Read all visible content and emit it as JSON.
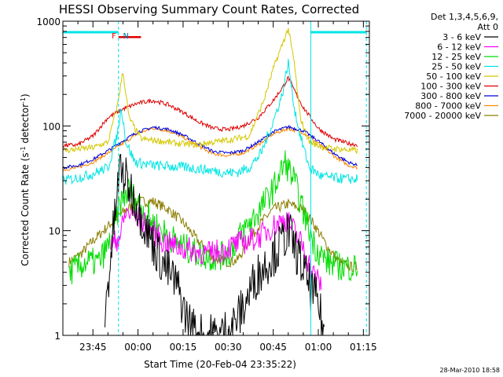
{
  "chart_data": {
    "type": "line",
    "title": "HESSI Observing Summary Count Rates, Corrected",
    "xlabel": "Start Time (20-Feb-04 23:35:22)",
    "ylabel_main": "Corrected Count Rate (s",
    "ylabel_sup1": "-1",
    "ylabel_mid": " detector",
    "ylabel_sup2": "-1",
    "ylabel_end": ")",
    "yscale": "log",
    "ylim": [
      1,
      1000
    ],
    "xlim_minutes": [
      0,
      102
    ],
    "x_tick_labels": [
      "23:45",
      "00:00",
      "00:15",
      "00:30",
      "00:45",
      "01:00",
      "01:15"
    ],
    "x_tick_minutes": [
      10,
      25,
      40,
      55,
      70,
      85,
      100
    ],
    "y_tick_labels": [
      "1",
      "10",
      "100",
      "1000"
    ],
    "y_tick_values": [
      1,
      10,
      100,
      1000
    ],
    "legend_header": [
      "Det 1,3,4,5,6,9,",
      "Att 0"
    ],
    "legend_placement": "top-right outside",
    "footer": "28-Mar-2010 18:58",
    "flags": {
      "night_bars": [
        [
          0,
          18.5
        ],
        [
          82.5,
          101
        ]
      ],
      "saa_bar": [
        18.5,
        26
      ],
      "boundary_lines": [
        0,
        18.5,
        82.5,
        101
      ],
      "labels": [
        {
          "text": "F",
          "at": 17
        },
        {
          "text": "N",
          "at": 21
        }
      ],
      "night_color": "#00e5e5",
      "saa_color": "#e00000"
    },
    "series": [
      {
        "name": "3 - 6 keV",
        "color": "#000000",
        "start": 14,
        "end": 87,
        "points": [
          [
            14,
            1.5
          ],
          [
            16,
            6
          ],
          [
            19,
            40
          ],
          [
            24,
            20
          ],
          [
            28,
            10
          ],
          [
            33,
            5
          ],
          [
            38,
            3
          ],
          [
            41,
            1.5
          ],
          [
            45,
            1
          ],
          [
            52,
            1
          ],
          [
            56,
            1.2
          ],
          [
            60,
            1.8
          ],
          [
            64,
            3.5
          ],
          [
            68,
            5
          ],
          [
            72,
            7
          ],
          [
            75,
            10
          ],
          [
            78,
            6
          ],
          [
            82,
            3
          ],
          [
            85,
            2
          ],
          [
            87,
            1
          ]
        ]
      },
      {
        "name": "6 - 12 keV",
        "color": "#ff00ff",
        "start": 16,
        "end": 86,
        "points": [
          [
            16,
            7
          ],
          [
            19,
            9
          ],
          [
            21,
            15
          ],
          [
            24,
            14
          ],
          [
            28,
            11
          ],
          [
            33,
            8
          ],
          [
            38,
            7
          ],
          [
            43,
            6.5
          ],
          [
            48,
            6
          ],
          [
            53,
            6.5
          ],
          [
            58,
            7.5
          ],
          [
            62,
            8
          ],
          [
            66,
            9
          ],
          [
            70,
            11
          ],
          [
            74,
            13
          ],
          [
            77,
            10
          ],
          [
            80,
            7
          ],
          [
            83,
            4
          ],
          [
            86,
            3
          ]
        ]
      },
      {
        "name": "12 - 25 keV",
        "color": "#00dd00",
        "start": 2,
        "end": 98,
        "points": [
          [
            2,
            4
          ],
          [
            8,
            5
          ],
          [
            12,
            5
          ],
          [
            16,
            8
          ],
          [
            19,
            18
          ],
          [
            22,
            25
          ],
          [
            25,
            18
          ],
          [
            30,
            12
          ],
          [
            35,
            9
          ],
          [
            40,
            7
          ],
          [
            45,
            6
          ],
          [
            50,
            5.5
          ],
          [
            55,
            6
          ],
          [
            60,
            10
          ],
          [
            65,
            15
          ],
          [
            70,
            25
          ],
          [
            74,
            45
          ],
          [
            77,
            30
          ],
          [
            80,
            15
          ],
          [
            84,
            7
          ],
          [
            88,
            5
          ],
          [
            93,
            4.5
          ],
          [
            98,
            4.5
          ]
        ]
      },
      {
        "name": "25 - 50 keV",
        "color": "#00e5e5",
        "start": 0,
        "end": 98,
        "points": [
          [
            0,
            30
          ],
          [
            5,
            32
          ],
          [
            10,
            35
          ],
          [
            15,
            40
          ],
          [
            18,
            80
          ],
          [
            19.5,
            150
          ],
          [
            21,
            70
          ],
          [
            24,
            45
          ],
          [
            30,
            42
          ],
          [
            36,
            41
          ],
          [
            42,
            40
          ],
          [
            48,
            38
          ],
          [
            54,
            36
          ],
          [
            58,
            36
          ],
          [
            62,
            40
          ],
          [
            66,
            55
          ],
          [
            70,
            110
          ],
          [
            73,
            200
          ],
          [
            75,
            400
          ],
          [
            77,
            150
          ],
          [
            79,
            80
          ],
          [
            82,
            40
          ],
          [
            86,
            33
          ],
          [
            90,
            32
          ],
          [
            95,
            31
          ],
          [
            98,
            31
          ]
        ]
      },
      {
        "name": "50 - 100 keV",
        "color": "#d4c800",
        "start": 0,
        "end": 98,
        "points": [
          [
            0,
            58
          ],
          [
            5,
            60
          ],
          [
            10,
            62
          ],
          [
            15,
            70
          ],
          [
            18,
            150
          ],
          [
            20,
            330
          ],
          [
            22,
            120
          ],
          [
            26,
            75
          ],
          [
            32,
            72
          ],
          [
            38,
            68
          ],
          [
            44,
            66
          ],
          [
            50,
            70
          ],
          [
            56,
            74
          ],
          [
            62,
            80
          ],
          [
            67,
            180
          ],
          [
            70,
            350
          ],
          [
            73,
            600
          ],
          [
            75,
            850
          ],
          [
            77,
            400
          ],
          [
            79,
            120
          ],
          [
            82,
            70
          ],
          [
            87,
            62
          ],
          [
            92,
            60
          ],
          [
            98,
            58
          ]
        ]
      },
      {
        "name": "100 - 300 keV",
        "color": "#dd0000",
        "start": 0,
        "end": 98,
        "points": [
          [
            0,
            65
          ],
          [
            5,
            66
          ],
          [
            10,
            80
          ],
          [
            15,
            120
          ],
          [
            20,
            145
          ],
          [
            25,
            165
          ],
          [
            30,
            175
          ],
          [
            35,
            160
          ],
          [
            40,
            135
          ],
          [
            45,
            110
          ],
          [
            50,
            95
          ],
          [
            55,
            92
          ],
          [
            60,
            100
          ],
          [
            65,
            120
          ],
          [
            70,
            175
          ],
          [
            73,
            230
          ],
          [
            75,
            290
          ],
          [
            77,
            220
          ],
          [
            80,
            150
          ],
          [
            85,
            95
          ],
          [
            90,
            75
          ],
          [
            95,
            68
          ],
          [
            98,
            66
          ]
        ]
      },
      {
        "name": "300 - 800 keV",
        "color": "#0000dd",
        "start": 0,
        "end": 98,
        "points": [
          [
            0,
            40
          ],
          [
            5,
            42
          ],
          [
            10,
            48
          ],
          [
            15,
            58
          ],
          [
            20,
            72
          ],
          [
            25,
            88
          ],
          [
            30,
            97
          ],
          [
            35,
            93
          ],
          [
            40,
            82
          ],
          [
            45,
            68
          ],
          [
            50,
            57
          ],
          [
            55,
            55
          ],
          [
            60,
            58
          ],
          [
            65,
            70
          ],
          [
            70,
            88
          ],
          [
            75,
            98
          ],
          [
            80,
            90
          ],
          [
            85,
            72
          ],
          [
            90,
            55
          ],
          [
            95,
            45
          ],
          [
            98,
            42
          ]
        ]
      },
      {
        "name": "800 - 7000 keV",
        "color": "#ff8800",
        "start": 0,
        "end": 98,
        "points": [
          [
            0,
            38
          ],
          [
            5,
            40
          ],
          [
            10,
            45
          ],
          [
            15,
            55
          ],
          [
            20,
            68
          ],
          [
            25,
            85
          ],
          [
            30,
            95
          ],
          [
            35,
            90
          ],
          [
            40,
            78
          ],
          [
            45,
            64
          ],
          [
            50,
            54
          ],
          [
            55,
            52
          ],
          [
            60,
            55
          ],
          [
            65,
            66
          ],
          [
            70,
            84
          ],
          [
            75,
            94
          ],
          [
            80,
            86
          ],
          [
            85,
            68
          ],
          [
            90,
            52
          ],
          [
            95,
            42
          ],
          [
            98,
            40
          ]
        ]
      },
      {
        "name": "7000 - 20000 keV",
        "color": "#8b7d00",
        "start": 2,
        "end": 98,
        "points": [
          [
            2,
            5
          ],
          [
            6,
            6
          ],
          [
            10,
            8
          ],
          [
            15,
            11
          ],
          [
            20,
            15
          ],
          [
            25,
            19
          ],
          [
            30,
            19
          ],
          [
            35,
            16
          ],
          [
            40,
            12
          ],
          [
            45,
            8
          ],
          [
            50,
            5.5
          ],
          [
            55,
            5
          ],
          [
            58,
            5.2
          ],
          [
            62,
            8
          ],
          [
            66,
            12
          ],
          [
            70,
            16
          ],
          [
            75,
            18
          ],
          [
            80,
            16
          ],
          [
            84,
            11
          ],
          [
            88,
            7
          ],
          [
            92,
            5
          ],
          [
            96,
            4.5
          ],
          [
            98,
            4.5
          ]
        ]
      }
    ]
  }
}
